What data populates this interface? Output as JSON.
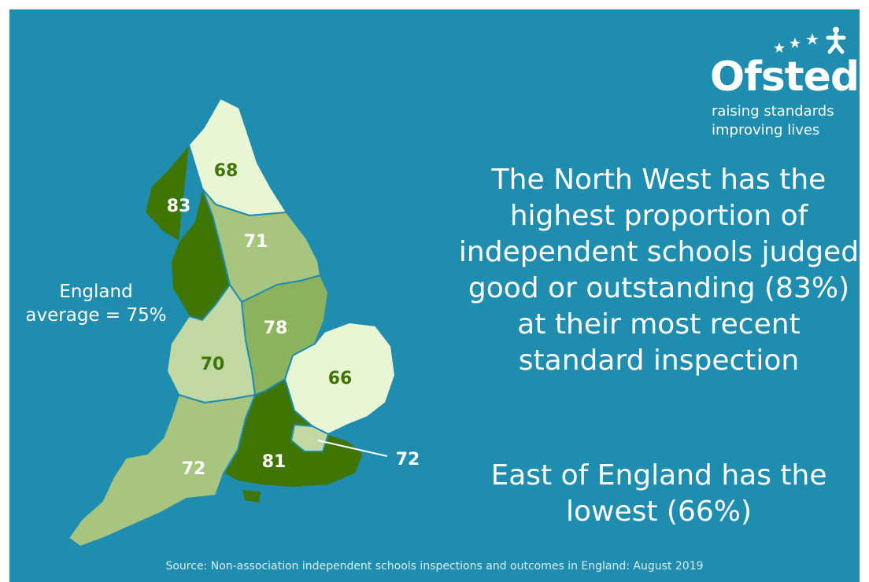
{
  "logo": {
    "wordmark": "Ofsted",
    "tagline_1": "raising standards",
    "tagline_2": "improving lives"
  },
  "headline": "The North West has the highest proportion of independent schools judged good or outstanding (83%) at their most recent standard inspection",
  "subline": "East of England has the lowest (66%)",
  "average_label_1": "England",
  "average_label_2": "average = 75%",
  "source": "Source: Non-association independent schools inspections and outcomes in England: August 2019",
  "regions": {
    "north_east": 68,
    "north_west": 83,
    "yorkshire": 71,
    "east_midlands": 78,
    "west_midlands": 70,
    "east_of_england": 66,
    "london": 72,
    "south_east": 81,
    "south_west": 72
  },
  "colors": {
    "background": "#1f8db0",
    "dark_green": "#3e7503",
    "pale_green": "#e9f6d6"
  }
}
